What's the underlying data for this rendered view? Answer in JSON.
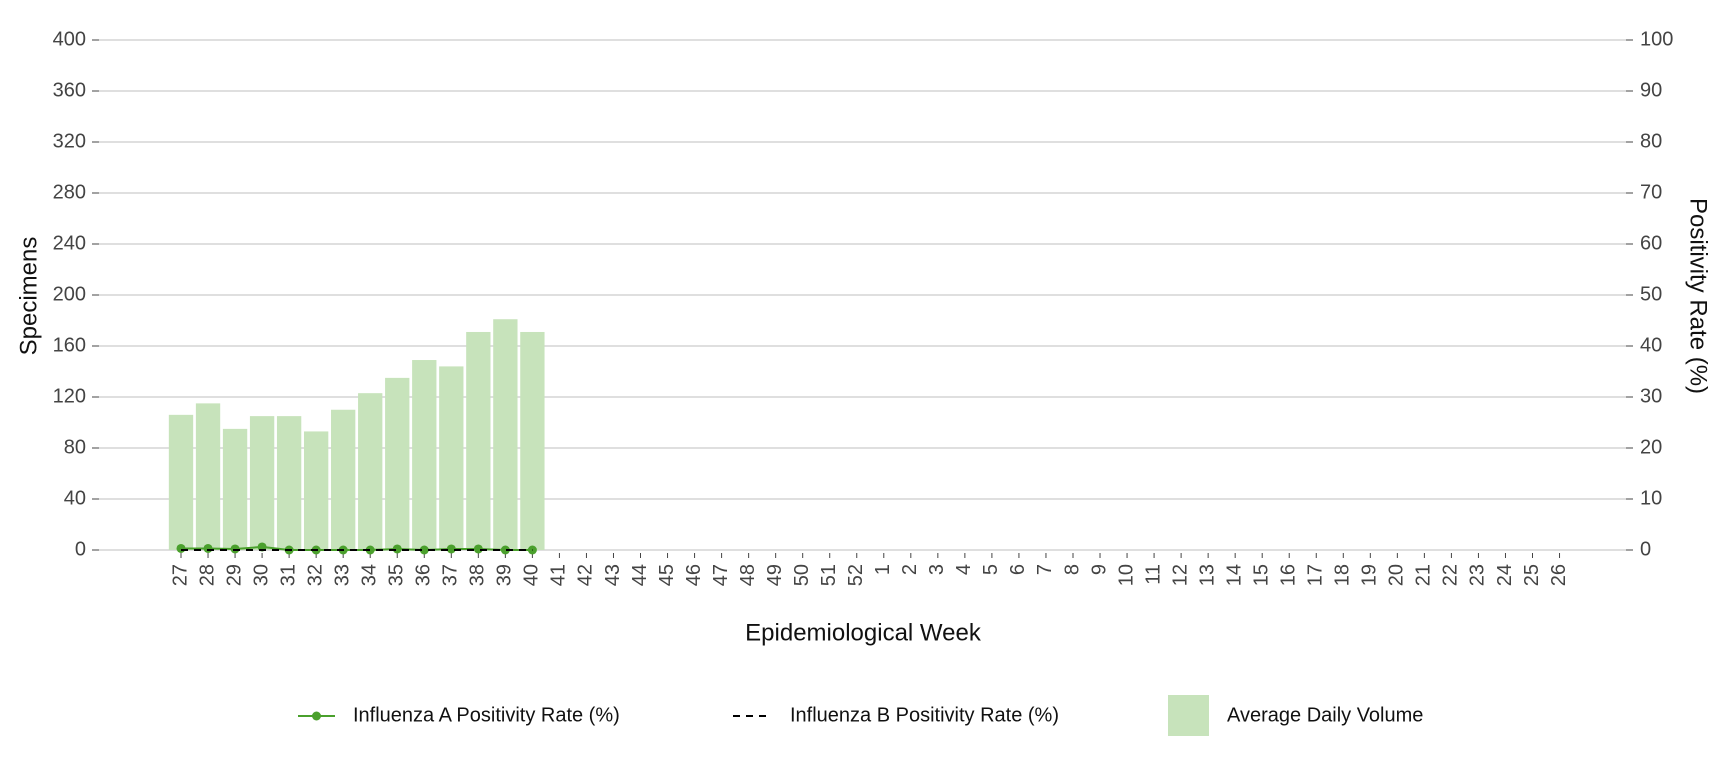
{
  "chart_data": {
    "type": "combo",
    "x_label": "Epidemiological Week",
    "y_label": "Specimens",
    "y2_label": "Positivity Rate (%)",
    "categories": [
      "27",
      "28",
      "29",
      "30",
      "31",
      "32",
      "33",
      "34",
      "35",
      "36",
      "37",
      "38",
      "39",
      "40",
      "41",
      "42",
      "43",
      "44",
      "45",
      "46",
      "47",
      "48",
      "49",
      "50",
      "51",
      "52",
      "1",
      "2",
      "3",
      "4",
      "5",
      "6",
      "7",
      "8",
      "9",
      "10",
      "11",
      "12",
      "13",
      "14",
      "15",
      "16",
      "17",
      "18",
      "19",
      "20",
      "21",
      "22",
      "23",
      "24",
      "25",
      "26"
    ],
    "ylim": [
      0,
      400
    ],
    "yticks": [
      0,
      40,
      80,
      120,
      160,
      200,
      240,
      280,
      320,
      360,
      400
    ],
    "y2lim": [
      0,
      100
    ],
    "y2ticks": [
      0,
      10,
      20,
      30,
      40,
      50,
      60,
      70,
      80,
      90,
      100
    ],
    "grid": true,
    "legend": "bottom",
    "series": [
      {
        "name": "Average Daily Volume",
        "type": "bar",
        "color": "#c7e3bb",
        "values": [
          106,
          115,
          95,
          105,
          105,
          93,
          110,
          123,
          135,
          149,
          144,
          171,
          181,
          171,
          null,
          null,
          null,
          null,
          null,
          null,
          null,
          null,
          null,
          null,
          null,
          null,
          null,
          null,
          null,
          null,
          null,
          null,
          null,
          null,
          null,
          null,
          null,
          null,
          null,
          null,
          null,
          null,
          null,
          null,
          null,
          null,
          null,
          null,
          null,
          null,
          null,
          null
        ]
      },
      {
        "name": "Influenza A Positivity Rate (%)",
        "type": "line",
        "axis": "y2",
        "color": "#4aa02c",
        "markers": true,
        "values": [
          0.3,
          0.3,
          0.2,
          0.6,
          0,
          0,
          0,
          0,
          0.2,
          0,
          0.2,
          0.2,
          0,
          0,
          null,
          null,
          null,
          null,
          null,
          null,
          null,
          null,
          null,
          null,
          null,
          null,
          null,
          null,
          null,
          null,
          null,
          null,
          null,
          null,
          null,
          null,
          null,
          null,
          null,
          null,
          null,
          null,
          null,
          null,
          null,
          null,
          null,
          null,
          null,
          null,
          null,
          null
        ]
      },
      {
        "name": "Influenza B Positivity Rate (%)",
        "type": "line",
        "axis": "y2",
        "color": "#000000",
        "dashed": true,
        "values": [
          0,
          0,
          0,
          0,
          0,
          0,
          0,
          0,
          0,
          0,
          0,
          0,
          0,
          0,
          null,
          null,
          null,
          null,
          null,
          null,
          null,
          null,
          null,
          null,
          null,
          null,
          null,
          null,
          null,
          null,
          null,
          null,
          null,
          null,
          null,
          null,
          null,
          null,
          null,
          null,
          null,
          null,
          null,
          null,
          null,
          null,
          null,
          null,
          null,
          null,
          null,
          null
        ]
      }
    ]
  }
}
